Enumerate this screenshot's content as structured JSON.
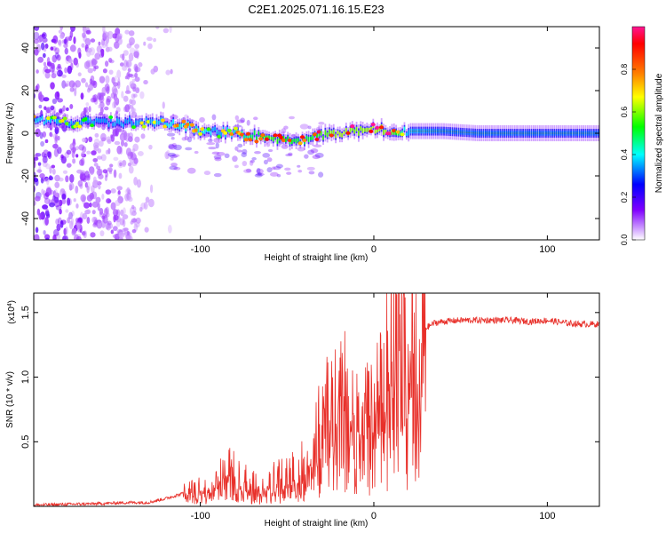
{
  "figure_title": "C2E1.2025.071.16.15.E23",
  "chart_data": [
    {
      "type": "heatmap",
      "title": "",
      "xlabel": "Height of straight line (km)",
      "ylabel": "Frequency (Hz)",
      "xlim": [
        -196,
        130
      ],
      "ylim": [
        -50,
        50
      ],
      "x_ticks": [
        -100,
        0,
        100
      ],
      "y_ticks": [
        -40,
        -20,
        0,
        20,
        40
      ],
      "grid": false,
      "colorbar": {
        "label": "Normalized spectral amplitude",
        "range": [
          0,
          1
        ],
        "ticks": [
          0.0,
          0.2,
          0.4,
          0.6,
          0.8
        ],
        "colormap": [
          "#ff1493",
          "#ff0000",
          "#ff8000",
          "#ffff00",
          "#00ff00",
          "#00ffff",
          "#0000ff",
          "#8000ff",
          "#ffffff"
        ]
      },
      "ridge": {
        "x": [
          -196,
          -170,
          -150,
          -130,
          -110,
          -100,
          -90,
          -80,
          -70,
          -60,
          -50,
          -40,
          -30,
          -20,
          -10,
          0,
          10,
          20,
          40,
          60,
          80,
          100,
          130
        ],
        "frequency": [
          6,
          5,
          5,
          5,
          4,
          1,
          1,
          0,
          -1,
          -2,
          -3,
          -3,
          -1,
          0,
          1,
          2,
          1,
          1,
          1,
          0,
          0,
          0,
          0
        ],
        "amplitude": [
          0.55,
          0.5,
          0.5,
          0.5,
          0.6,
          0.6,
          0.5,
          0.6,
          0.7,
          0.8,
          0.75,
          0.7,
          0.8,
          0.9,
          0.85,
          0.9,
          0.85,
          0.5,
          0.45,
          0.45,
          0.45,
          0.45,
          0.45
        ]
      }
    },
    {
      "type": "line",
      "title": "",
      "xlabel": "Height of straight line (km)",
      "ylabel": "SNR (10 * v/v)",
      "y_multiplier_label": "(x10",
      "y_multiplier_exp": "4",
      "y_multiplier_close": ")",
      "xlim": [
        -196,
        130
      ],
      "ylim": [
        0,
        1.65
      ],
      "x_ticks": [
        -100,
        0,
        100
      ],
      "y_ticks": [
        0.5,
        1.0,
        1.5
      ],
      "y_tick_labels": [
        "0.5",
        "1.0",
        "1.5"
      ],
      "grid": false,
      "color": "#e8302a",
      "series": [
        {
          "x": [
            -196,
            -180,
            -160,
            -140,
            -130,
            -120,
            -110,
            -100,
            -90,
            -85,
            -80,
            -75,
            -70,
            -65,
            -60,
            -55,
            -50,
            -45,
            -40,
            -35,
            -30,
            -28,
            -25,
            -20,
            -15,
            -10,
            -5,
            0,
            5,
            10,
            13,
            15,
            20,
            25,
            30,
            35,
            40,
            50,
            60,
            70,
            80,
            90,
            100,
            110,
            120,
            130
          ],
          "y": [
            0.01,
            0.015,
            0.02,
            0.03,
            0.03,
            0.06,
            0.1,
            0.12,
            0.18,
            0.3,
            0.22,
            0.2,
            0.15,
            0.12,
            0.18,
            0.2,
            0.22,
            0.25,
            0.3,
            0.4,
            0.55,
            0.75,
            0.7,
            0.9,
            0.85,
            0.7,
            0.75,
            0.72,
            0.9,
            1.2,
            1.55,
            1.3,
            1.25,
            1.3,
            1.38,
            1.42,
            1.43,
            1.44,
            1.44,
            1.44,
            1.44,
            1.43,
            1.44,
            1.42,
            1.41,
            1.41
          ]
        }
      ]
    }
  ]
}
